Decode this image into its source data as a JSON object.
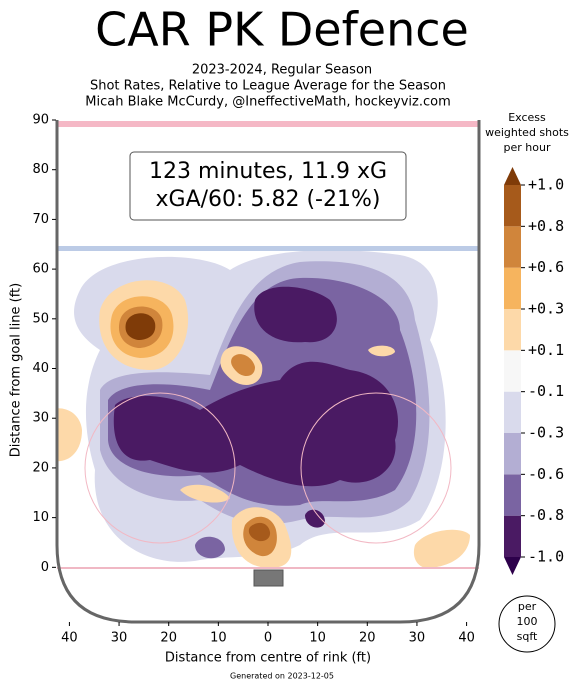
{
  "chart_data": {
    "type": "contour",
    "title": "CAR PK Defence",
    "subtitle": [
      "2023-2024, Regular Season",
      "Shot Rates, Relative to League Average for the Season",
      "Micah Blake McCurdy, @IneffectiveMath, hockeyviz.com"
    ],
    "annotation": [
      "123 minutes, 11.9 xG",
      "xGA/60: 5.82 (-21%)"
    ],
    "xlabel": "Distance from centre of rink (ft)",
    "ylabel": "Distance from goal line (ft)",
    "xlim": [
      -42.5,
      42.5
    ],
    "ylim": [
      -11,
      90
    ],
    "xticks": [
      {
        "value": -40,
        "label": "40"
      },
      {
        "value": -30,
        "label": "30"
      },
      {
        "value": -20,
        "label": "20"
      },
      {
        "value": -10,
        "label": "10"
      },
      0,
      10,
      20,
      30,
      40
    ],
    "yticks": [
      0,
      10,
      20,
      30,
      40,
      50,
      60,
      70,
      80,
      90
    ],
    "colorbar_label": [
      "Excess",
      "weighted shots",
      "per hour"
    ],
    "colorbar_ticks": [
      {
        "value": -1.0,
        "label": "-1.0"
      },
      {
        "value": -0.8,
        "label": "-0.8"
      },
      {
        "value": -0.6,
        "label": "-0.6"
      },
      {
        "value": -0.3,
        "label": "-0.3"
      },
      {
        "value": -0.1,
        "label": "-0.1"
      },
      {
        "value": 0.1,
        "label": "+0.1"
      },
      {
        "value": 0.3,
        "label": "+0.3"
      },
      {
        "value": 0.6,
        "label": "+0.6"
      },
      {
        "value": 0.8,
        "label": "+0.8"
      },
      {
        "value": 1.0,
        "label": "+1.0"
      }
    ],
    "colors": [
      "#4a1a63",
      "#7a64a2",
      "#b3aed3",
      "#d9daec",
      "#f7f7f7",
      "#fdd9a9",
      "#f6b45e",
      "#d0853b",
      "#a65a1b"
    ],
    "extend_colors": [
      "#2d004b",
      "#7f3b08"
    ],
    "per_unit": [
      "per",
      "100",
      "sqft"
    ],
    "footer": "Generated on 2023-12-05"
  }
}
